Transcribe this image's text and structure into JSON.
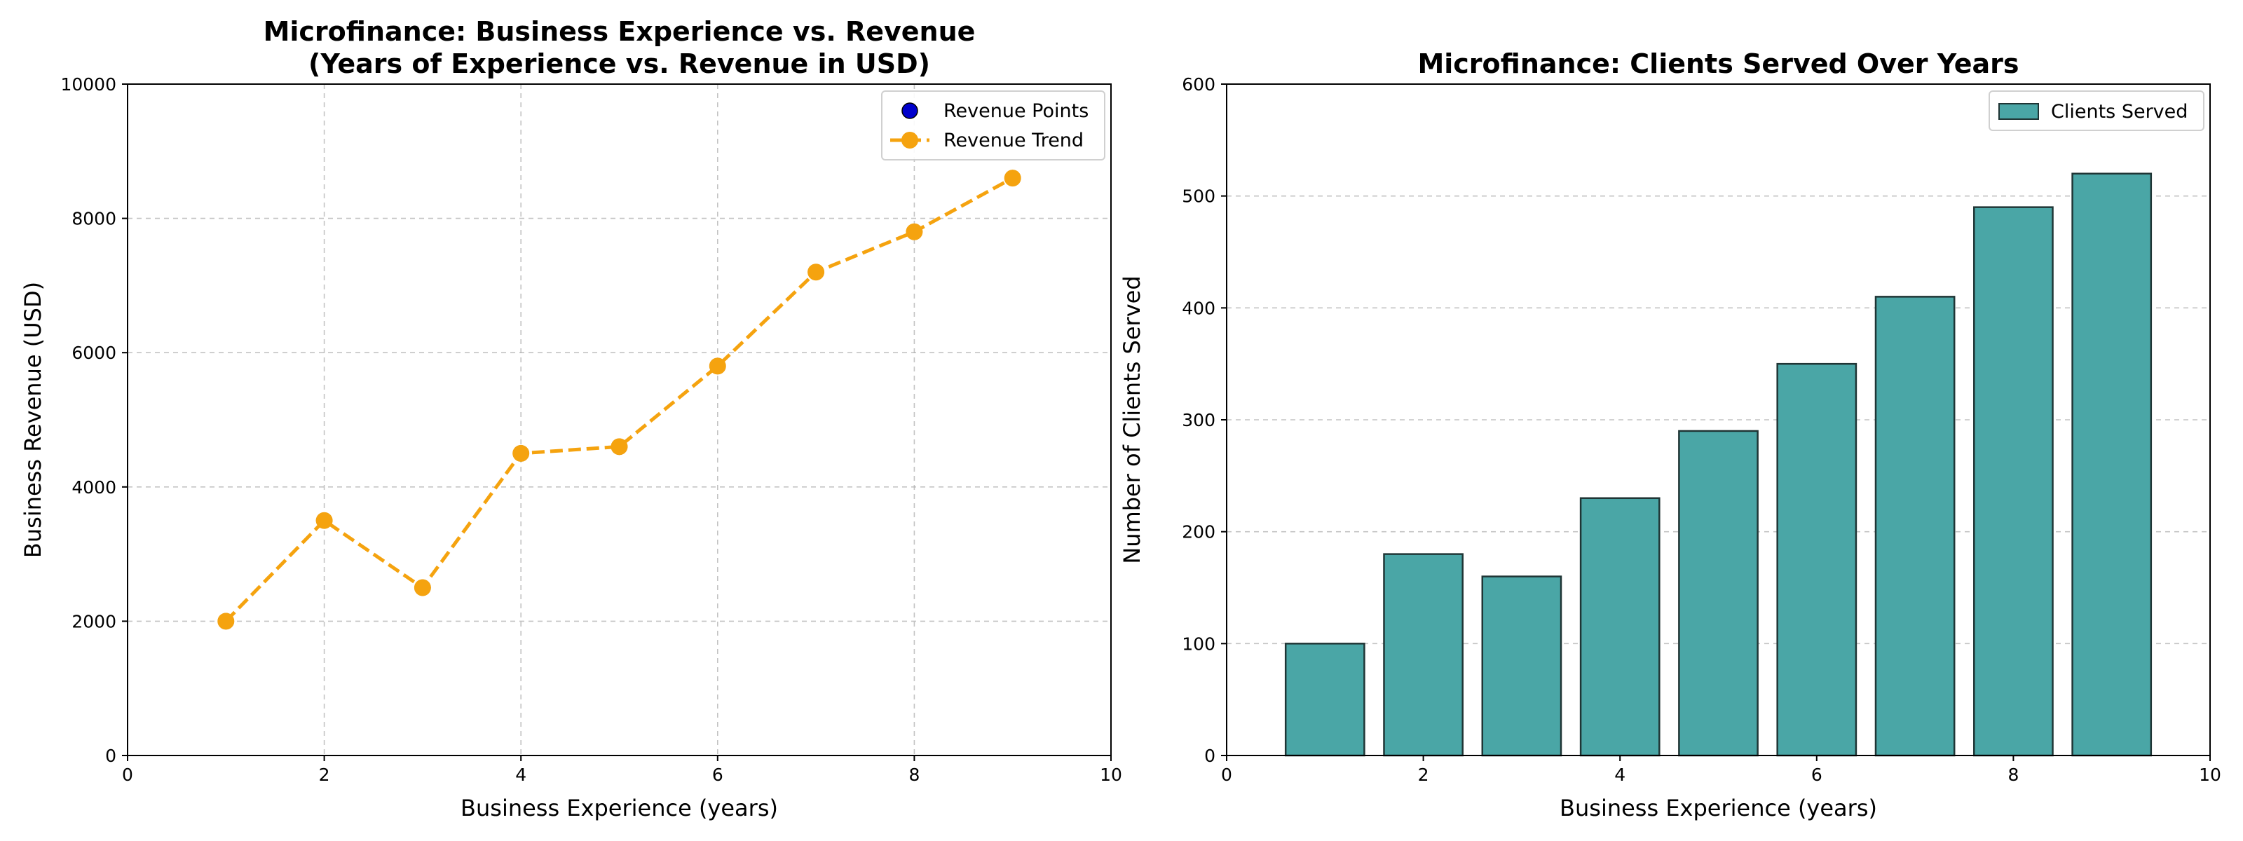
{
  "chart_data": [
    {
      "type": "line",
      "title": "Microfinance: Business Experience vs. Revenue\n(Years of Experience vs. Revenue in USD)",
      "xlabel": "Business Experience (years)",
      "ylabel": "Business Revenue (USD)",
      "xlim": [
        0,
        10
      ],
      "ylim": [
        0,
        10000
      ],
      "xticks": [
        0,
        2,
        4,
        6,
        8,
        10
      ],
      "yticks": [
        0,
        2000,
        4000,
        6000,
        8000,
        10000
      ],
      "grid": true,
      "legend_position": "top-right",
      "x": [
        1,
        2,
        3,
        4,
        5,
        6,
        7,
        8,
        9
      ],
      "series": [
        {
          "name": "Revenue Points",
          "kind": "scatter",
          "color": "#0000cc",
          "values": [
            2000,
            3500,
            2500,
            4500,
            4600,
            5800,
            7200,
            7800,
            8600
          ]
        },
        {
          "name": "Revenue Trend",
          "kind": "line",
          "color": "#f5a30f",
          "values": [
            2000,
            3500,
            2500,
            4500,
            4600,
            5800,
            7200,
            7800,
            8600
          ]
        }
      ]
    },
    {
      "type": "bar",
      "title": "Microfinance: Clients Served Over Years",
      "xlabel": "Business Experience (years)",
      "ylabel": "Number of Clients Served",
      "xlim": [
        0,
        10
      ],
      "ylim": [
        0,
        600
      ],
      "xticks": [
        0,
        2,
        4,
        6,
        8,
        10
      ],
      "yticks": [
        0,
        100,
        200,
        300,
        400,
        500,
        600
      ],
      "grid": true,
      "legend_position": "top-right",
      "categories": [
        1,
        2,
        3,
        4,
        5,
        6,
        7,
        8,
        9
      ],
      "series": [
        {
          "name": "Clients Served",
          "color": "#4aa6a6",
          "edge_color": "#1f3535",
          "values": [
            100,
            180,
            160,
            230,
            290,
            350,
            410,
            490,
            520
          ]
        }
      ]
    }
  ]
}
